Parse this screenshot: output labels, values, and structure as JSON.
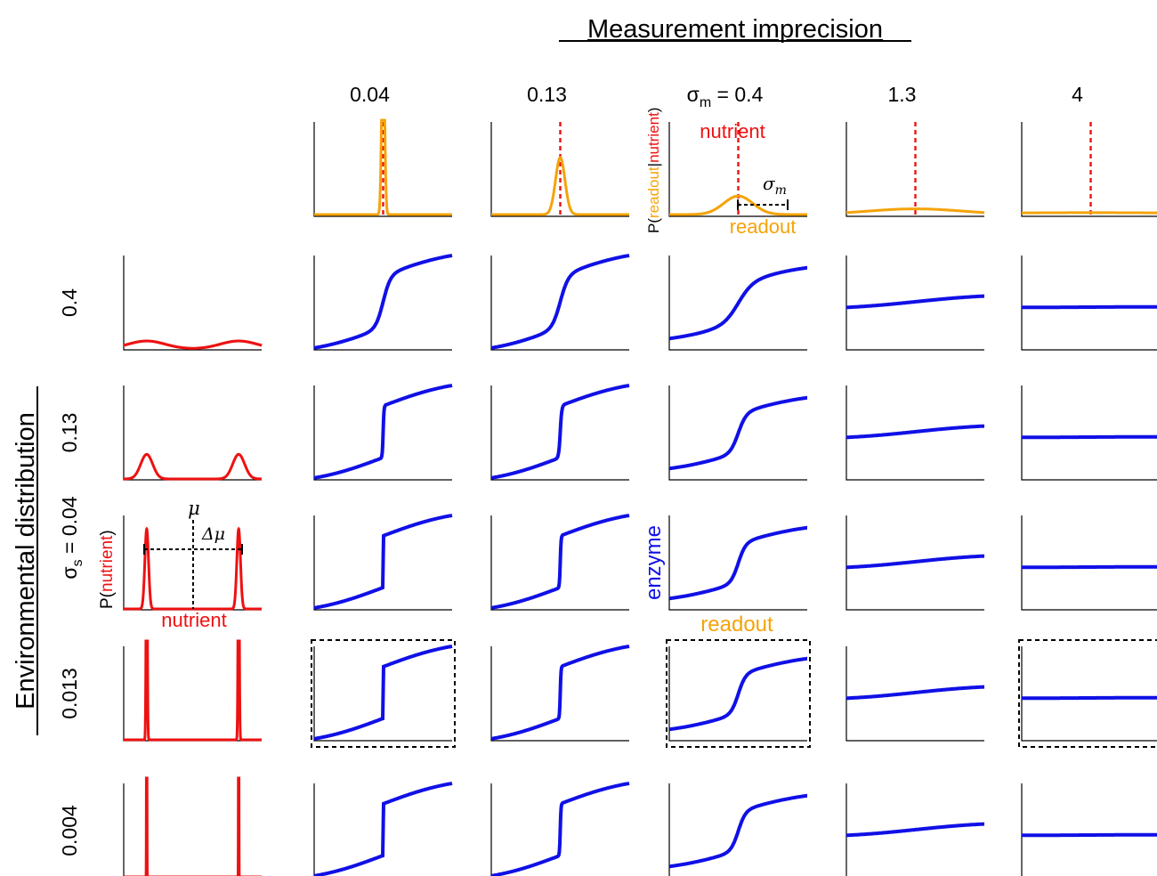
{
  "titles": {
    "column_group": "Measurement imprecision",
    "row_group": "Environmental distribution"
  },
  "column_headers": [
    {
      "value": "0.04"
    },
    {
      "value": "0.13"
    },
    {
      "symbol": "σ",
      "subscript": "m",
      "eq": " = ",
      "value": "0.4"
    },
    {
      "value": "1.3"
    },
    {
      "value": "4"
    }
  ],
  "row_headers": [
    {
      "value": "0.4"
    },
    {
      "value": "0.13"
    },
    {
      "symbol": "σ",
      "subscript": "s",
      "eq": " = ",
      "value": "0.04"
    },
    {
      "value": "0.013"
    },
    {
      "value": "0.004"
    }
  ],
  "annotations": {
    "noise_axis_label": {
      "prefix": "P(",
      "first": "readout",
      "sep": "|",
      "second": "nutrient",
      "suffix": ")"
    },
    "noise_nutrient_label": "nutrient",
    "noise_readout_label": "readout",
    "noise_sigma_symbol": "σ",
    "noise_sigma_sub": "m",
    "env_axis_label": {
      "prefix": "P(",
      "inner": "nutrient",
      "suffix": ")"
    },
    "env_nutrient_label": "nutrient",
    "env_mu_label": "μ",
    "env_delta_mu_label": "Δμ",
    "response_y_label": "enzyme",
    "response_x_label": "readout"
  },
  "colors": {
    "noise_curve": "#f5a30a",
    "nutrient_line": "#ee1111",
    "environment_curve": "#ee1111",
    "response_curve": "#1010e6",
    "axes": "#000000",
    "readout_text": "#f5a30a",
    "enzyme_text": "#1010e6"
  },
  "chart_data": {
    "type": "grid-of-line-plots",
    "column_parameter": {
      "name": "σm",
      "values": [
        0.04,
        0.13,
        0.4,
        1.3,
        4
      ]
    },
    "row_parameter": {
      "name": "σs",
      "values": [
        0.4,
        0.13,
        0.04,
        0.013,
        0.004
      ]
    },
    "environment_peaks_at": [
      -1,
      1
    ],
    "noise_panels_x_range": [
      -1.9,
      1.9
    ],
    "environment_panels_x_range": [
      -1.5,
      1.5
    ],
    "response_panels_x_range": [
      -1.5,
      1.5
    ],
    "response_y_range": [
      0,
      1
    ],
    "dashed_highlight_cells": [
      {
        "row": 3,
        "col": 0
      },
      {
        "row": 3,
        "col": 2
      },
      {
        "row": 3,
        "col": 4
      }
    ]
  }
}
